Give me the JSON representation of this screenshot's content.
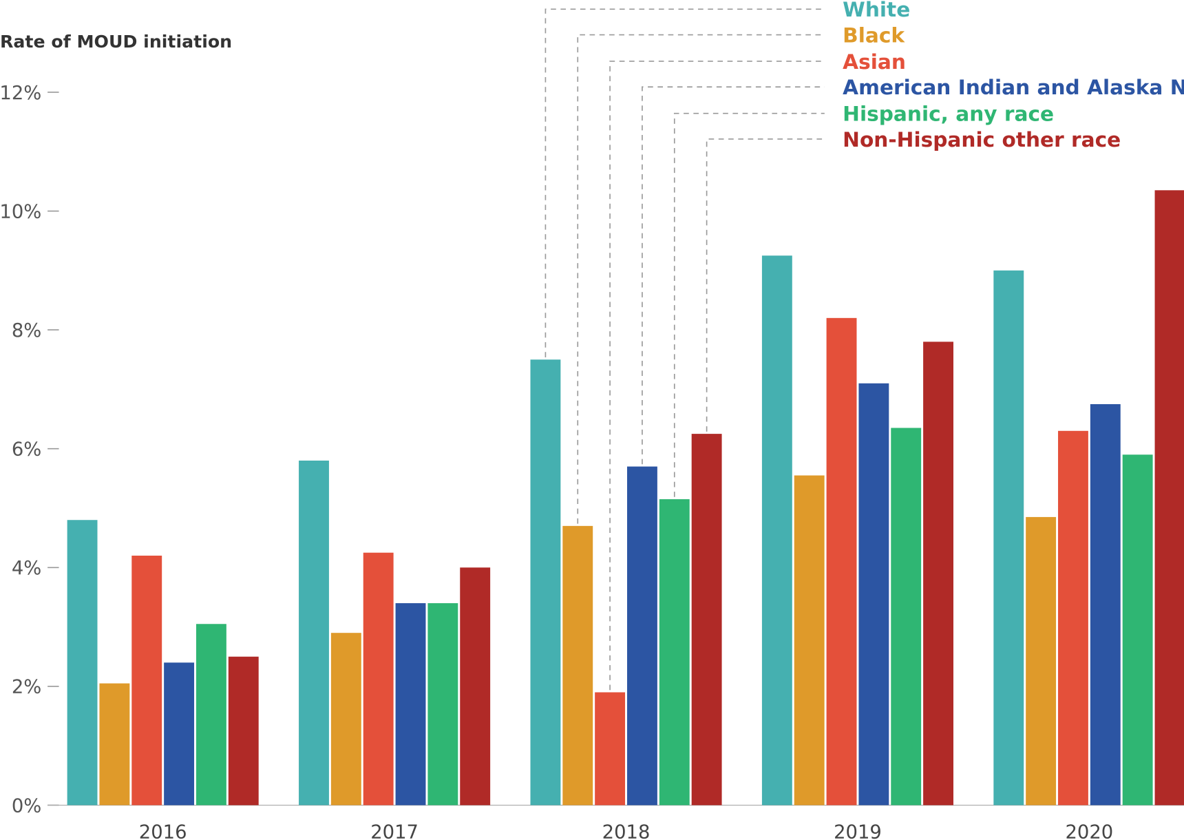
{
  "chart_data": {
    "type": "bar",
    "title": "",
    "ylabel": "Rate of MOUD initiation",
    "xlabel": "",
    "ylim": [
      0,
      12
    ],
    "yticks": [
      "0%",
      "2%",
      "4%",
      "6%",
      "8%",
      "10%",
      "12%"
    ],
    "grid": false,
    "legend_placement": "top-right",
    "categories": [
      "2016",
      "2017",
      "2018",
      "2019",
      "2020"
    ],
    "series": [
      {
        "name": "White",
        "color": "#45b0b0",
        "values": [
          4.8,
          5.8,
          7.5,
          9.25,
          9.0
        ]
      },
      {
        "name": "Black",
        "color": "#df9a2a",
        "values": [
          2.05,
          2.9,
          4.7,
          5.55,
          4.85
        ]
      },
      {
        "name": "Asian",
        "color": "#e4503a",
        "values": [
          4.2,
          4.25,
          1.9,
          8.2,
          6.3
        ]
      },
      {
        "name": "American Indian and Alaska Native",
        "color": "#2c55a3",
        "values": [
          2.4,
          3.4,
          5.7,
          7.1,
          6.75
        ]
      },
      {
        "name": "Hispanic, any race",
        "color": "#2fb673",
        "values": [
          3.05,
          3.4,
          5.15,
          6.35,
          5.9
        ]
      },
      {
        "name": "Non-Hispanic other race",
        "color": "#b02a27",
        "values": [
          2.5,
          4.0,
          6.25,
          7.8,
          10.35
        ]
      }
    ]
  }
}
